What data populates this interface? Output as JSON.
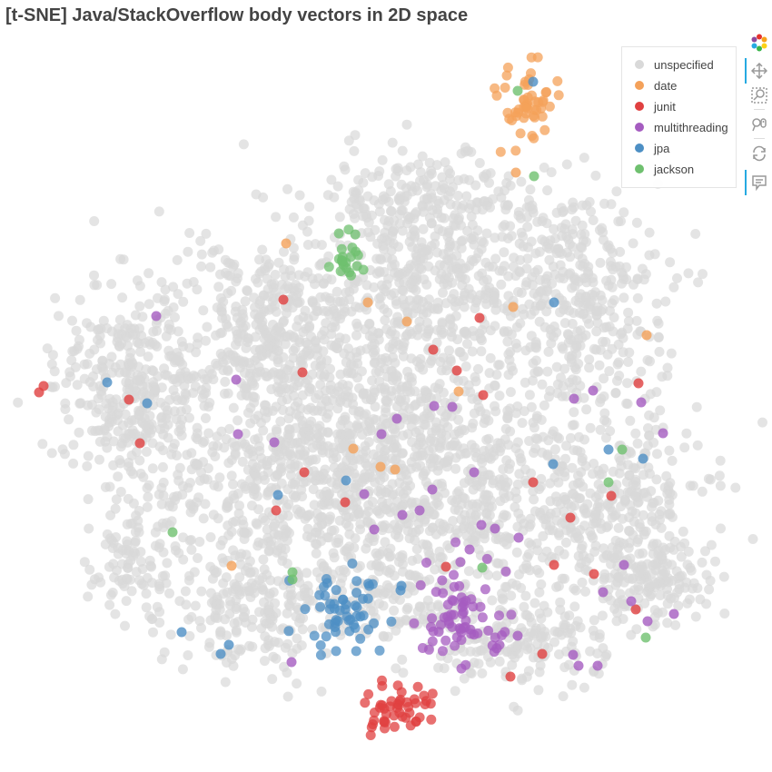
{
  "chart_data": {
    "type": "scatter",
    "title": "[t-SNE] Java/StackOverflow body vectors in 2D space",
    "xlabel": "",
    "ylabel": "",
    "grid": false,
    "legend_placement": "top-right",
    "series": [
      {
        "name": "unspecified",
        "color": "#d9d9d9",
        "clusters": [
          {
            "cx": 150,
            "cy": 430,
            "sx": 45,
            "sy": 55,
            "n": 380
          },
          {
            "cx": 300,
            "cy": 360,
            "sx": 55,
            "sy": 50,
            "n": 380
          },
          {
            "cx": 480,
            "cy": 310,
            "sx": 70,
            "sy": 55,
            "n": 460
          },
          {
            "cx": 640,
            "cy": 330,
            "sx": 45,
            "sy": 70,
            "n": 340
          },
          {
            "cx": 420,
            "cy": 470,
            "sx": 80,
            "sy": 55,
            "n": 520
          },
          {
            "cx": 300,
            "cy": 540,
            "sx": 60,
            "sy": 50,
            "n": 360
          },
          {
            "cx": 520,
            "cy": 560,
            "sx": 70,
            "sy": 50,
            "n": 400
          },
          {
            "cx": 680,
            "cy": 560,
            "sx": 50,
            "sy": 55,
            "n": 300
          },
          {
            "cx": 280,
            "cy": 670,
            "sx": 45,
            "sy": 35,
            "n": 200
          },
          {
            "cx": 560,
            "cy": 700,
            "sx": 55,
            "sy": 30,
            "n": 200
          },
          {
            "cx": 150,
            "cy": 615,
            "sx": 25,
            "sy": 30,
            "n": 100
          },
          {
            "cx": 470,
            "cy": 225,
            "sx": 60,
            "sy": 25,
            "n": 170
          },
          {
            "cx": 720,
            "cy": 640,
            "sx": 30,
            "sy": 25,
            "n": 120
          },
          {
            "cx": 410,
            "cy": 640,
            "sx": 45,
            "sy": 40,
            "n": 160
          }
        ]
      },
      {
        "name": "date",
        "color": "#f4a15a",
        "cluster": {
          "cx": 578,
          "cy": 110,
          "sx": 18,
          "sy": 20,
          "n": 52
        },
        "points": [
          [
            568,
            190
          ],
          [
            315,
            268
          ],
          [
            405,
            333
          ],
          [
            448,
            354
          ],
          [
            565,
            338
          ],
          [
            505,
            431
          ],
          [
            389,
            494
          ],
          [
            419,
            514
          ],
          [
            435,
            517
          ],
          [
            255,
            623
          ],
          [
            712,
            369
          ]
        ]
      },
      {
        "name": "junit",
        "color": "#e04040",
        "cluster": {
          "cx": 430,
          "cy": 778,
          "sx": 22,
          "sy": 12,
          "n": 48
        },
        "points": [
          [
            48,
            425
          ],
          [
            43,
            432
          ],
          [
            312,
            330
          ],
          [
            528,
            350
          ],
          [
            477,
            385
          ],
          [
            333,
            410
          ],
          [
            503,
            408
          ],
          [
            532,
            435
          ],
          [
            142,
            440
          ],
          [
            154,
            488
          ],
          [
            335,
            520
          ],
          [
            380,
            553
          ],
          [
            304,
            562
          ],
          [
            587,
            531
          ],
          [
            673,
            546
          ],
          [
            628,
            570
          ],
          [
            654,
            632
          ],
          [
            610,
            622
          ],
          [
            491,
            624
          ],
          [
            597,
            720
          ],
          [
            562,
            745
          ],
          [
            700,
            671
          ],
          [
            703,
            422
          ]
        ]
      },
      {
        "name": "multithreading",
        "color": "#a55cc0",
        "cluster": {
          "cx": 510,
          "cy": 680,
          "sx": 25,
          "sy": 25,
          "n": 70
        },
        "points": [
          [
            172,
            348
          ],
          [
            260,
            418
          ],
          [
            262,
            478
          ],
          [
            302,
            487
          ],
          [
            420,
            478
          ],
          [
            437,
            461
          ],
          [
            478,
            447
          ],
          [
            498,
            448
          ],
          [
            522,
            520
          ],
          [
            476,
            539
          ],
          [
            401,
            544
          ],
          [
            443,
            567
          ],
          [
            462,
            562
          ],
          [
            412,
            583
          ],
          [
            530,
            578
          ],
          [
            545,
            582
          ],
          [
            571,
            592
          ],
          [
            517,
            605
          ],
          [
            632,
            439
          ],
          [
            653,
            430
          ],
          [
            706,
            443
          ],
          [
            730,
            477
          ],
          [
            687,
            622
          ],
          [
            664,
            652
          ],
          [
            695,
            662
          ],
          [
            713,
            684
          ],
          [
            742,
            676
          ],
          [
            631,
            721
          ],
          [
            637,
            733
          ],
          [
            658,
            733
          ],
          [
            321,
            729
          ],
          [
            570,
            700
          ]
        ]
      },
      {
        "name": "jpa",
        "color": "#4d8fc4",
        "cluster": {
          "cx": 378,
          "cy": 678,
          "sx": 25,
          "sy": 22,
          "n": 55
        },
        "points": [
          [
            587,
            90
          ],
          [
            118,
            421
          ],
          [
            162,
            444
          ],
          [
            610,
            333
          ],
          [
            670,
            495
          ],
          [
            708,
            505
          ],
          [
            609,
            511
          ],
          [
            381,
            529
          ],
          [
            306,
            545
          ],
          [
            441,
            650
          ],
          [
            442,
            645
          ],
          [
            252,
            710
          ],
          [
            243,
            720
          ],
          [
            200,
            696
          ]
        ]
      },
      {
        "name": "jackson",
        "color": "#6fc06f",
        "cluster": {
          "cx": 385,
          "cy": 275,
          "sx": 12,
          "sy": 22,
          "n": 22
        },
        "points": [
          [
            570,
            100
          ],
          [
            588,
            194
          ],
          [
            685,
            495
          ],
          [
            670,
            531
          ],
          [
            190,
            586
          ],
          [
            322,
            630
          ],
          [
            322,
            638
          ],
          [
            531,
            625
          ],
          [
            711,
            702
          ]
        ]
      }
    ]
  },
  "legend": {
    "items": [
      {
        "label": "unspecified",
        "color": "#d9d9d9"
      },
      {
        "label": "date",
        "color": "#f4a15a"
      },
      {
        "label": "junit",
        "color": "#e04040"
      },
      {
        "label": "multithreading",
        "color": "#a55cc0"
      },
      {
        "label": "jpa",
        "color": "#4d8fc4"
      },
      {
        "label": "jackson",
        "color": "#6fc06f"
      }
    ]
  },
  "toolbar": {
    "tools": [
      {
        "icon": "bokeh-logo-icon"
      },
      {
        "icon": "pan-icon"
      },
      {
        "icon": "box-zoom-icon"
      },
      {
        "icon": "wheel-zoom-icon"
      },
      {
        "icon": "reset-icon"
      },
      {
        "icon": "hover-icon"
      }
    ]
  }
}
